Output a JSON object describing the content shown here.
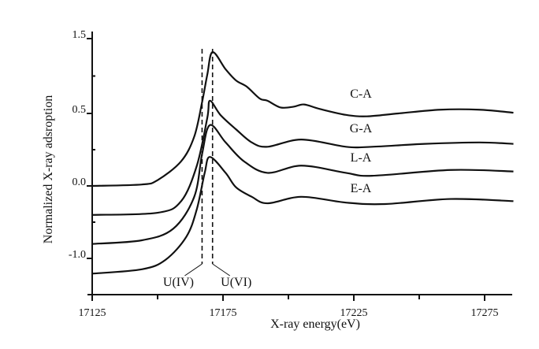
{
  "chart_data": {
    "type": "line",
    "title": "",
    "xlabel": "X-ray energy(eV)",
    "ylabel": "Normalized X-ray adsroption",
    "xlim": [
      17125,
      17286
    ],
    "xticks": [
      17125,
      17175,
      17225,
      17275
    ],
    "xtick_labels": [
      "17125",
      "17175",
      "17225",
      "17275"
    ],
    "ytick_labels": [
      "1.5",
      "0.5",
      "0.0",
      "-1.0"
    ],
    "ytick_values": [
      1.5,
      0.5,
      0.0,
      -1.0
    ],
    "grid": false,
    "series": [
      {
        "name": "C-A",
        "x": [
          17125,
          17144,
          17150,
          17159,
          17164,
          17167,
          17169,
          17171,
          17176,
          17180,
          17184,
          17189,
          17192,
          17197,
          17202,
          17206,
          17212,
          17222,
          17230,
          17242,
          17258,
          17273,
          17286
        ],
        "y": [
          0.0,
          0.01,
          0.04,
          0.17,
          0.34,
          0.65,
          1.02,
          1.32,
          1.09,
          0.94,
          0.86,
          0.7,
          0.67,
          0.58,
          0.59,
          0.62,
          0.56,
          0.49,
          0.48,
          0.5,
          0.55,
          0.55,
          0.51
        ]
      },
      {
        "name": "G-A",
        "x": [
          17125,
          17150,
          17159,
          17165,
          17169,
          17170,
          17174,
          17180,
          17186,
          17192,
          17205,
          17222,
          17232,
          17252,
          17273,
          17286
        ],
        "y": [
          -0.4,
          -0.37,
          -0.21,
          0.14,
          0.47,
          0.67,
          0.49,
          0.39,
          0.3,
          0.27,
          0.32,
          0.27,
          0.27,
          0.29,
          0.3,
          0.29
        ]
      },
      {
        "name": "L-A",
        "x": [
          17125,
          17144,
          17156,
          17164,
          17167,
          17170,
          17176,
          17183,
          17192,
          17205,
          17222,
          17232,
          17262,
          17286
        ],
        "y": [
          -0.8,
          -0.75,
          -0.59,
          -0.15,
          0.22,
          0.42,
          0.3,
          0.17,
          0.09,
          0.14,
          0.09,
          0.07,
          0.11,
          0.1
        ]
      },
      {
        "name": "E-A",
        "x": [
          17125,
          17144,
          17153,
          17161,
          17165,
          17168,
          17170,
          17176,
          17180,
          17186,
          17192,
          17205,
          17222,
          17237,
          17262,
          17286
        ],
        "y": [
          -1.21,
          -1.15,
          -1.02,
          -0.7,
          -0.32,
          0.09,
          0.2,
          0.09,
          -0.02,
          -0.15,
          -0.24,
          -0.15,
          -0.23,
          -0.25,
          -0.18,
          -0.21
        ]
      }
    ],
    "annotations": [
      {
        "text": "U(IV)",
        "x": 17167
      },
      {
        "text": "U(VI)",
        "x": 17171
      }
    ]
  }
}
